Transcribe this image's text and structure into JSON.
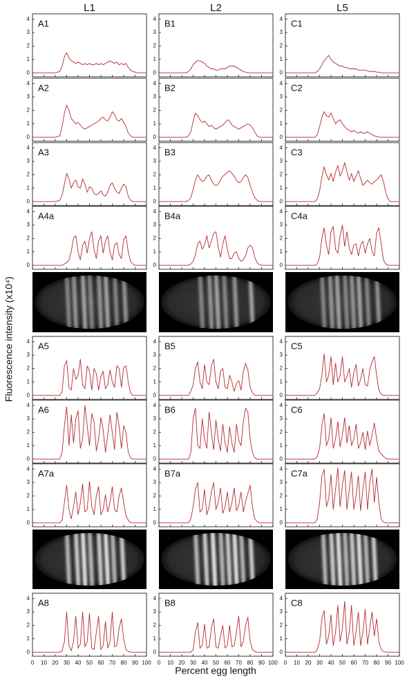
{
  "chart_data": {
    "type": "line",
    "columns": [
      "L1",
      "L2",
      "L5"
    ],
    "ylabel": "Fluorescence intensity (x10⁴)",
    "xlabel": "Percent egg length",
    "xlim": [
      0,
      100
    ],
    "xticks": [
      0,
      10,
      20,
      30,
      40,
      50,
      60,
      70,
      80,
      90,
      100
    ],
    "ylim": [
      -0.3,
      4.4
    ],
    "yticks": [
      0,
      1,
      2,
      3,
      4
    ],
    "color": "#b5282c",
    "x": [
      0,
      10,
      20,
      24,
      26,
      28,
      30,
      32,
      34,
      36,
      38,
      40,
      42,
      44,
      46,
      48,
      50,
      52,
      54,
      56,
      58,
      60,
      62,
      64,
      66,
      68,
      70,
      72,
      74,
      76,
      78,
      80,
      82,
      84,
      86,
      88,
      90,
      92,
      95,
      100
    ],
    "panels": [
      {
        "label": "A1",
        "values": [
          0,
          0,
          0,
          0.1,
          0.5,
          1.2,
          1.5,
          1.1,
          0.9,
          0.8,
          0.7,
          0.8,
          0.7,
          0.6,
          0.7,
          0.6,
          0.7,
          0.6,
          0.6,
          0.7,
          0.6,
          0.7,
          0.6,
          0.7,
          0.8,
          0.9,
          0.8,
          0.7,
          0.8,
          0.6,
          0.7,
          0.6,
          0.7,
          0.4,
          0.2,
          0.1,
          0.05,
          0,
          0,
          0
        ]
      },
      {
        "label": "B1",
        "values": [
          0,
          0,
          0,
          0,
          0.1,
          0.3,
          0.6,
          0.8,
          0.9,
          0.9,
          0.8,
          0.7,
          0.5,
          0.4,
          0.3,
          0.3,
          0.2,
          0.2,
          0.3,
          0.3,
          0.3,
          0.4,
          0.5,
          0.5,
          0.5,
          0.4,
          0.3,
          0.2,
          0.1,
          0.05,
          0,
          0,
          0,
          0,
          0,
          0,
          0,
          0,
          0,
          0
        ]
      },
      {
        "label": "C1",
        "values": [
          0,
          0,
          0,
          0,
          0,
          0.1,
          0.3,
          0.6,
          0.9,
          1.1,
          1.3,
          1.0,
          0.8,
          0.7,
          0.6,
          0.5,
          0.5,
          0.4,
          0.4,
          0.3,
          0.3,
          0.3,
          0.3,
          0.2,
          0.2,
          0.2,
          0.2,
          0.15,
          0.1,
          0.1,
          0.1,
          0.05,
          0.05,
          0,
          0,
          0,
          0,
          0,
          0,
          0
        ]
      },
      {
        "label": "A2",
        "values": [
          0,
          0,
          0,
          0.1,
          0.8,
          1.8,
          2.4,
          2.0,
          1.4,
          1.2,
          1.0,
          1.1,
          0.9,
          0.7,
          0.6,
          0.7,
          0.8,
          0.9,
          1.0,
          1.1,
          1.2,
          1.4,
          1.5,
          1.3,
          1.2,
          1.5,
          1.9,
          1.7,
          1.3,
          1.2,
          1.4,
          1.1,
          0.8,
          0.3,
          0.1,
          0,
          0,
          0,
          0,
          0
        ]
      },
      {
        "label": "B2",
        "values": [
          0,
          0,
          0,
          0,
          0.1,
          0.4,
          1.2,
          1.8,
          1.6,
          1.3,
          1.1,
          1.2,
          1.0,
          0.8,
          0.9,
          0.7,
          0.6,
          0.7,
          0.8,
          0.9,
          1.1,
          1.3,
          1.2,
          0.9,
          0.8,
          0.7,
          0.6,
          0.7,
          0.8,
          0.9,
          1.0,
          0.9,
          0.7,
          0.4,
          0.1,
          0,
          0,
          0,
          0,
          0
        ]
      },
      {
        "label": "C2",
        "values": [
          0,
          0,
          0,
          0,
          0,
          0.2,
          0.8,
          1.5,
          1.9,
          1.6,
          1.5,
          1.8,
          1.4,
          1.0,
          1.2,
          1.3,
          1.0,
          0.8,
          0.6,
          0.5,
          0.4,
          0.5,
          0.4,
          0.3,
          0.4,
          0.3,
          0.3,
          0.4,
          0.3,
          0.2,
          0.1,
          0.05,
          0,
          0,
          0,
          0,
          0,
          0,
          0,
          0
        ]
      },
      {
        "label": "A3",
        "values": [
          0,
          0,
          0,
          0.1,
          0.5,
          1.3,
          2.1,
          1.7,
          1.0,
          1.4,
          1.6,
          1.1,
          1.0,
          1.7,
          1.3,
          0.7,
          1.1,
          1.0,
          0.6,
          0.5,
          0.6,
          0.8,
          0.5,
          0.4,
          0.7,
          1.2,
          1.4,
          1.0,
          0.7,
          0.6,
          1.0,
          1.3,
          1.1,
          0.4,
          0.1,
          0,
          0,
          0,
          0,
          0
        ]
      },
      {
        "label": "B3",
        "values": [
          0,
          0,
          0,
          0,
          0.1,
          0.3,
          0.9,
          1.6,
          2.0,
          1.7,
          1.5,
          1.6,
          1.9,
          2.0,
          1.6,
          1.3,
          1.2,
          1.3,
          1.6,
          1.9,
          2.0,
          2.2,
          2.3,
          2.1,
          1.9,
          1.6,
          1.4,
          1.5,
          1.8,
          2.0,
          1.8,
          1.2,
          0.7,
          0.3,
          0.1,
          0,
          0,
          0,
          0,
          0
        ]
      },
      {
        "label": "C3",
        "values": [
          0,
          0,
          0,
          0,
          0,
          0.2,
          0.8,
          1.8,
          2.6,
          2.0,
          1.6,
          2.1,
          1.5,
          2.2,
          2.7,
          1.9,
          2.3,
          2.9,
          2.2,
          1.6,
          2.1,
          1.5,
          1.9,
          2.3,
          1.7,
          1.2,
          1.4,
          1.6,
          1.4,
          1.3,
          1.5,
          1.6,
          1.8,
          2.0,
          1.5,
          0.7,
          0.2,
          0,
          0,
          0
        ]
      },
      {
        "label": "A4a",
        "values": [
          0,
          0,
          0,
          0,
          0,
          0.1,
          0.2,
          0.4,
          1.0,
          2.0,
          2.2,
          1.0,
          0.4,
          1.5,
          1.8,
          0.9,
          2.0,
          2.5,
          1.2,
          0.5,
          1.8,
          2.2,
          0.9,
          1.8,
          2.2,
          1.0,
          0.4,
          1.5,
          1.7,
          0.8,
          0.5,
          1.9,
          2.2,
          1.0,
          0.3,
          0.1,
          0,
          0,
          0,
          0
        ]
      },
      {
        "label": "B4a",
        "values": [
          0,
          0,
          0,
          0,
          0,
          0.1,
          0.3,
          0.8,
          1.6,
          1.8,
          1.2,
          1.5,
          2.2,
          1.3,
          1.8,
          2.4,
          2.5,
          1.4,
          0.6,
          1.6,
          2.2,
          1.2,
          0.5,
          0.5,
          0.9,
          1.0,
          0.5,
          0.3,
          0.4,
          0.7,
          1.3,
          1.5,
          1.3,
          0.6,
          0.2,
          0.05,
          0,
          0,
          0,
          0
        ]
      },
      {
        "label": "C4a",
        "values": [
          0,
          0,
          0,
          0,
          0,
          0.1,
          0.6,
          2.0,
          2.8,
          1.5,
          0.8,
          2.5,
          2.9,
          1.2,
          0.9,
          2.2,
          3.0,
          1.4,
          2.5,
          1.3,
          0.8,
          1.5,
          1.6,
          0.7,
          1.5,
          1.8,
          0.9,
          1.6,
          2.0,
          1.0,
          0.7,
          2.4,
          2.8,
          1.6,
          0.4,
          0.1,
          0,
          0,
          0,
          0
        ]
      },
      {
        "label": "A5",
        "values": [
          0,
          0,
          0,
          0,
          0.3,
          2.2,
          2.6,
          0.6,
          0.4,
          2.0,
          1.2,
          1.5,
          2.7,
          0.8,
          0.5,
          2.2,
          1.8,
          0.4,
          2.0,
          1.6,
          0.4,
          1.4,
          1.8,
          0.5,
          0.8,
          1.9,
          1.0,
          0.6,
          2.2,
          2.0,
          0.6,
          2.1,
          2.2,
          1.0,
          0.2,
          0,
          0,
          0,
          0,
          0
        ]
      },
      {
        "label": "B5",
        "values": [
          0,
          0,
          0,
          0,
          0,
          0.3,
          0.8,
          2.0,
          2.5,
          1.0,
          0.5,
          2.3,
          1.0,
          0.8,
          2.2,
          2.7,
          1.0,
          0.5,
          1.8,
          2.0,
          0.6,
          0.5,
          1.5,
          1.0,
          0.3,
          0.9,
          1.1,
          0.4,
          1.8,
          2.4,
          1.9,
          0.6,
          0.2,
          0,
          0,
          0,
          0,
          0,
          0,
          0
        ]
      },
      {
        "label": "C5",
        "values": [
          0,
          0,
          0,
          0,
          0,
          0.2,
          0.5,
          1.5,
          3.1,
          1.0,
          1.5,
          2.9,
          0.8,
          2.4,
          1.0,
          1.5,
          2.9,
          1.0,
          1.4,
          2.0,
          0.6,
          1.7,
          2.3,
          0.7,
          1.2,
          2.0,
          0.8,
          0.7,
          1.9,
          2.5,
          2.9,
          1.5,
          0.4,
          0.1,
          0,
          0,
          0,
          0,
          0,
          0
        ]
      },
      {
        "label": "A6",
        "values": [
          0,
          0,
          0,
          0,
          0.5,
          2.5,
          3.9,
          1.0,
          3.3,
          1.2,
          3.0,
          3.6,
          0.8,
          1.5,
          4.0,
          2.5,
          1.0,
          3.4,
          2.8,
          0.6,
          1.5,
          3.1,
          2.2,
          0.5,
          1.8,
          3.3,
          2.0,
          0.7,
          3.5,
          2.5,
          0.8,
          2.5,
          2.0,
          0.5,
          0.1,
          0,
          0,
          0,
          0,
          0
        ]
      },
      {
        "label": "B6",
        "values": [
          0,
          0,
          0,
          0,
          0,
          0.5,
          3.0,
          3.8,
          1.0,
          0.8,
          3.0,
          1.5,
          0.8,
          3.5,
          2.0,
          0.7,
          2.9,
          1.5,
          0.6,
          2.6,
          1.2,
          0.5,
          2.4,
          1.2,
          0.5,
          2.6,
          1.4,
          1.0,
          2.8,
          3.8,
          3.5,
          1.5,
          0.5,
          0.1,
          0,
          0,
          0,
          0,
          0,
          0
        ]
      },
      {
        "label": "C6",
        "values": [
          0,
          0,
          0,
          0,
          0,
          0.2,
          0.8,
          2.5,
          3.4,
          1.0,
          1.5,
          3.1,
          0.8,
          1.5,
          2.8,
          0.9,
          1.8,
          3.1,
          1.2,
          2.5,
          1.0,
          1.5,
          2.6,
          0.8,
          1.2,
          2.0,
          0.7,
          2.1,
          1.0,
          1.8,
          2.7,
          1.5,
          0.6,
          0.4,
          0.2,
          0.05,
          0,
          0,
          0,
          0
        ]
      },
      {
        "label": "A7a",
        "values": [
          0,
          0,
          0,
          0,
          0.2,
          1.5,
          2.8,
          1.0,
          0.3,
          1.2,
          2.3,
          0.6,
          1.5,
          2.9,
          0.8,
          1.0,
          3.1,
          1.2,
          0.6,
          2.0,
          2.7,
          0.6,
          1.0,
          2.1,
          0.8,
          1.5,
          2.7,
          1.0,
          0.8,
          2.0,
          2.6,
          1.5,
          0.5,
          0.2,
          0,
          0,
          0,
          0,
          0,
          0
        ]
      },
      {
        "label": "B7a",
        "values": [
          0,
          0,
          0,
          0,
          0,
          0.3,
          1.2,
          2.5,
          3.0,
          0.8,
          1.0,
          2.5,
          0.6,
          1.2,
          2.3,
          3.0,
          1.0,
          1.5,
          2.6,
          0.7,
          1.2,
          2.3,
          0.8,
          1.5,
          2.6,
          0.9,
          1.3,
          2.3,
          0.8,
          1.6,
          2.2,
          2.8,
          1.2,
          0.3,
          0.1,
          0,
          0,
          0,
          0,
          0
        ]
      },
      {
        "label": "C7a",
        "values": [
          0,
          0,
          0,
          0,
          0,
          0.3,
          1.5,
          3.5,
          4.0,
          1.2,
          1.8,
          3.6,
          1.0,
          2.5,
          4.1,
          1.2,
          2.8,
          3.9,
          1.0,
          2.5,
          3.8,
          1.0,
          2.0,
          3.5,
          0.9,
          2.5,
          3.8,
          1.0,
          3.0,
          4.0,
          1.5,
          3.4,
          1.5,
          0.3,
          0.05,
          0,
          0,
          0,
          0,
          0
        ]
      },
      {
        "label": "A8",
        "values": [
          0,
          0,
          0,
          0,
          0.1,
          0.8,
          3.0,
          0.5,
          0.1,
          0.8,
          2.7,
          0.3,
          0.6,
          3.0,
          0.4,
          0.8,
          2.9,
          0.3,
          0.2,
          1.5,
          2.7,
          0.2,
          0.5,
          2.3,
          0.3,
          0.8,
          3.0,
          0.4,
          0.5,
          1.8,
          2.5,
          1.0,
          0.2,
          0.05,
          0,
          0,
          0,
          0,
          0,
          0
        ]
      },
      {
        "label": "B8",
        "values": [
          0,
          0,
          0,
          0,
          0,
          0,
          0.2,
          1.5,
          2.2,
          0.3,
          0.5,
          2.1,
          0.3,
          0.4,
          1.8,
          2.5,
          0.4,
          0.3,
          1.2,
          2.0,
          0.3,
          0.5,
          2.0,
          0.4,
          0.5,
          1.5,
          2.7,
          0.4,
          0.8,
          2.0,
          2.6,
          0.8,
          0.2,
          0.05,
          0,
          0,
          0,
          0,
          0,
          0
        ]
      },
      {
        "label": "C8",
        "values": [
          0,
          0,
          0,
          0,
          0,
          0.2,
          0.8,
          2.5,
          3.1,
          0.6,
          1.2,
          2.8,
          0.5,
          1.5,
          3.5,
          0.8,
          1.8,
          3.8,
          0.6,
          1.5,
          3.5,
          0.5,
          1.5,
          3.0,
          0.5,
          1.5,
          3.2,
          0.6,
          1.8,
          3.0,
          1.2,
          2.5,
          0.8,
          0.2,
          0.05,
          0,
          0,
          0,
          0,
          0
        ]
      }
    ]
  }
}
